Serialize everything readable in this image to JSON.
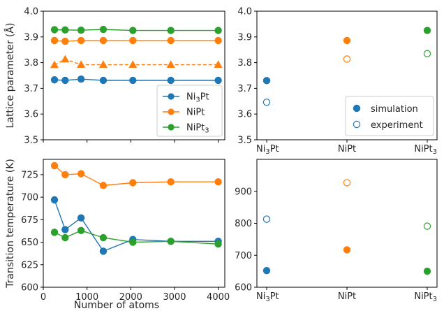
{
  "colors": {
    "Ni3Pt": "#1f77b4",
    "NiPt": "#ff7f0e",
    "NiPt3": "#2ca02c"
  },
  "chart_data": [
    {
      "type": "line",
      "panel": "top-left",
      "xlabel": "",
      "ylabel": "Lattice parameter (Å)",
      "xlim": [
        0,
        4150
      ],
      "ylim": [
        3.5,
        4.0
      ],
      "xticks": [
        0,
        1000,
        2000,
        3000,
        4000
      ],
      "yticks": [
        3.5,
        3.6,
        3.7,
        3.8,
        3.9,
        4.0
      ],
      "ytick_labels": [
        "3.5",
        "3.6",
        "3.7",
        "3.8",
        "3.9",
        "4.0"
      ],
      "x": [
        256,
        500,
        864,
        1372,
        2048,
        2916,
        4000
      ],
      "legend_position": "lower-right",
      "series": [
        {
          "name": "Ni3Pt",
          "display": [
            "Ni",
            "3",
            "Pt"
          ],
          "color_key": "Ni3Pt",
          "marker": "circle",
          "dash": false,
          "values": [
            3.733,
            3.731,
            3.736,
            3.731,
            3.731,
            3.731,
            3.731
          ],
          "in_legend": true
        },
        {
          "name": "NiPt",
          "display": [
            "NiPt"
          ],
          "color_key": "NiPt",
          "marker": "circle",
          "dash": false,
          "values": [
            3.886,
            3.883,
            3.886,
            3.886,
            3.886,
            3.886,
            3.886
          ],
          "in_legend": true
        },
        {
          "name": "NiPt3",
          "display": [
            "NiPt",
            "3",
            ""
          ],
          "color_key": "NiPt3",
          "marker": "circle",
          "dash": false,
          "values": [
            3.928,
            3.927,
            3.926,
            3.929,
            3.925,
            3.925,
            3.925
          ],
          "in_legend": true
        },
        {
          "name": "",
          "color_key": "NiPt",
          "marker": "triangle",
          "dash": true,
          "values": [
            3.791,
            3.813,
            3.792,
            3.792,
            3.792,
            3.792,
            3.792
          ],
          "in_legend": false
        }
      ]
    },
    {
      "type": "scatter",
      "panel": "top-right",
      "ylim": [
        3.5,
        4.0
      ],
      "yticks": [
        3.5,
        3.6,
        3.7,
        3.8,
        3.9,
        4.0
      ],
      "ytick_labels": [
        "3.5",
        "3.6",
        "3.7",
        "3.8",
        "3.9",
        "4.0"
      ],
      "categories": [
        [
          "Ni",
          "3",
          "Pt"
        ],
        [
          "NiPt",
          "",
          ""
        ],
        [
          "NiPt",
          "3",
          ""
        ]
      ],
      "category_colors": [
        "Ni3Pt",
        "NiPt",
        "NiPt3"
      ],
      "legend_position": "lower-right",
      "series": [
        {
          "name": "simulation",
          "filled": true,
          "values": [
            3.73,
            3.886,
            3.925
          ]
        },
        {
          "name": "experiment",
          "filled": false,
          "values": [
            3.646,
            3.814,
            3.835
          ]
        }
      ]
    },
    {
      "type": "line",
      "panel": "bottom-left",
      "xlabel": "Number of atoms",
      "ylabel": "Transition temperature (K)",
      "xlim": [
        0,
        4150
      ],
      "ylim": [
        600,
        742
      ],
      "xticks": [
        0,
        1000,
        2000,
        3000,
        4000
      ],
      "xtick_labels": [
        "0",
        "1000",
        "2000",
        "3000",
        "4000"
      ],
      "yticks": [
        600,
        625,
        650,
        675,
        700,
        725
      ],
      "ytick_labels": [
        "600",
        "625",
        "650",
        "675",
        "700",
        "725"
      ],
      "x": [
        256,
        500,
        864,
        1372,
        2048,
        2916,
        4000
      ],
      "series": [
        {
          "name": "Ni3Pt",
          "color_key": "Ni3Pt",
          "values": [
            697,
            664,
            677,
            640,
            653,
            651,
            651
          ]
        },
        {
          "name": "NiPt",
          "color_key": "NiPt",
          "values": [
            735,
            725,
            726,
            713,
            716,
            717,
            717
          ]
        },
        {
          "name": "NiPt3",
          "color_key": "NiPt3",
          "values": [
            661,
            655,
            663,
            655,
            650,
            651,
            648
          ]
        }
      ]
    },
    {
      "type": "scatter",
      "panel": "bottom-right",
      "ylim": [
        600,
        1000
      ],
      "yticks": [
        600,
        700,
        800,
        900
      ],
      "ytick_labels": [
        "600",
        "700",
        "800",
        "900"
      ],
      "categories": [
        [
          "Ni",
          "3",
          "Pt"
        ],
        [
          "NiPt",
          "",
          ""
        ],
        [
          "NiPt",
          "3",
          ""
        ]
      ],
      "category_colors": [
        "Ni3Pt",
        "NiPt",
        "NiPt3"
      ],
      "series": [
        {
          "name": "simulation",
          "filled": true,
          "values": [
            652,
            717,
            650
          ]
        },
        {
          "name": "experiment",
          "filled": false,
          "values": [
            813,
            927,
            791
          ]
        }
      ]
    }
  ]
}
